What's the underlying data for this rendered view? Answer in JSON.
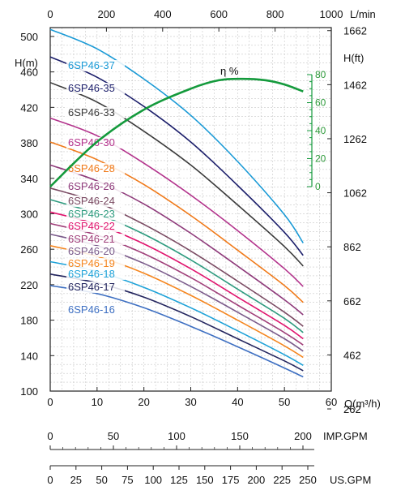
{
  "chart_data": {
    "type": "line",
    "title": "",
    "xlabel": "Q(m³/h)",
    "ylabel": "H(m)",
    "x_top_label": "L/min",
    "y_right_label": "H(ft)",
    "efficiency_label": "η %",
    "xlim": [
      0,
      60
    ],
    "ylim": [
      100,
      510
    ],
    "x_ticks": [
      "0",
      "10",
      "20",
      "30",
      "40",
      "50",
      "60"
    ],
    "x_top_ticks": [
      "0",
      "200",
      "400",
      "600",
      "800",
      "1000"
    ],
    "y_ticks": [
      "100",
      "140",
      "180",
      "220",
      "260",
      "300",
      "340",
      "380",
      "420",
      "460",
      "500"
    ],
    "y_right_ticks": [
      "262",
      "462",
      "662",
      "862",
      "1062",
      "1262",
      "1462",
      "1662"
    ],
    "efficiency_ticks": [
      "0",
      "20",
      "40",
      "60",
      "80"
    ],
    "grid": true,
    "series": [
      {
        "name": "6SP46-37",
        "color": "#1a9ad6",
        "x": [
          0,
          10,
          20,
          30,
          40,
          50,
          54
        ],
        "values": [
          508,
          486,
          452,
          411,
          359,
          299,
          267
        ]
      },
      {
        "name": "6SP46-35",
        "color": "#1c1f6b",
        "x": [
          0,
          10,
          20,
          30,
          40,
          50,
          54
        ],
        "values": [
          477,
          454,
          421,
          381,
          332,
          279,
          253
        ]
      },
      {
        "name": "6SP46-33",
        "color": "#3a3a3a",
        "x": [
          0,
          10,
          20,
          30,
          40,
          50,
          54
        ],
        "values": [
          448,
          426,
          393,
          355,
          310,
          263,
          241
        ]
      },
      {
        "name": "6SP46-30",
        "color": "#b3338c",
        "x": [
          0,
          10,
          20,
          30,
          40,
          50,
          54
        ],
        "values": [
          408,
          388,
          357,
          321,
          281,
          238,
          218
        ]
      },
      {
        "name": "6SP46-28",
        "color": "#f07a1a",
        "x": [
          0,
          10,
          20,
          30,
          40,
          50,
          54
        ],
        "values": [
          381,
          361,
          333,
          298,
          259,
          219,
          200
        ]
      },
      {
        "name": "6SP46-26",
        "color": "#8e3a7a",
        "x": [
          0,
          10,
          20,
          30,
          40,
          50,
          54
        ],
        "values": [
          355,
          337,
          311,
          278,
          241,
          203,
          186
        ]
      },
      {
        "name": "6SP46-24",
        "color": "#7a4a62",
        "x": [
          0,
          10,
          20,
          30,
          40,
          50,
          54
        ],
        "values": [
          329,
          313,
          288,
          258,
          224,
          189,
          173
        ]
      },
      {
        "name": "6SP46-23",
        "color": "#2e9b7f",
        "x": [
          0,
          10,
          20,
          30,
          40,
          50,
          54
        ],
        "values": [
          316,
          300,
          277,
          248,
          215,
          182,
          166
        ]
      },
      {
        "name": "6SP46-22",
        "color": "#e0156e",
        "x": [
          0,
          10,
          20,
          30,
          40,
          50,
          54
        ],
        "values": [
          302,
          288,
          266,
          238,
          206,
          174,
          159
        ]
      },
      {
        "name": "6SP46-21",
        "color": "#a0407a",
        "x": [
          0,
          10,
          20,
          30,
          40,
          50,
          54
        ],
        "values": [
          289,
          276,
          255,
          228,
          197,
          166,
          152
        ]
      },
      {
        "name": "6SP46-20",
        "color": "#7a5a8a",
        "x": [
          0,
          10,
          20,
          30,
          40,
          50,
          54
        ],
        "values": [
          277,
          264,
          244,
          218,
          189,
          159,
          145
        ]
      },
      {
        "name": "6SP46-19",
        "color": "#f5861f",
        "x": [
          0,
          10,
          20,
          30,
          40,
          50,
          54
        ],
        "values": [
          264,
          252,
          233,
          208,
          180,
          151,
          138
        ]
      },
      {
        "name": "6SP46-18",
        "color": "#1ea2d8",
        "x": [
          0,
          10,
          20,
          30,
          40,
          50,
          54
        ],
        "values": [
          246,
          235,
          217,
          194,
          168,
          141,
          129
        ]
      },
      {
        "name": "6SP46-17",
        "color": "#23255e",
        "x": [
          0,
          10,
          20,
          30,
          40,
          50,
          54
        ],
        "values": [
          232,
          222,
          206,
          184,
          159,
          134,
          123
        ]
      },
      {
        "name": "6SP46-16",
        "color": "#3d6fc2",
        "x": [
          0,
          10,
          20,
          30,
          40,
          50,
          54
        ],
        "values": [
          219,
          210,
          194,
          173,
          150,
          126,
          116
        ]
      }
    ],
    "efficiency": {
      "color": "#149a3c",
      "x": [
        0,
        10,
        20,
        30,
        36,
        41,
        46,
        50,
        54
      ],
      "values": [
        0,
        32,
        55,
        70,
        76,
        77,
        76,
        73,
        68
      ],
      "ylim": [
        0,
        80
      ]
    },
    "imp_gpm": {
      "label": "IMP.GPM",
      "ticks": [
        "0",
        "50",
        "100",
        "150",
        "200"
      ]
    },
    "us_gpm": {
      "label": "US.GPM",
      "ticks": [
        "0",
        "25",
        "50",
        "75",
        "100",
        "125",
        "150",
        "175",
        "200",
        "225",
        "250"
      ]
    }
  }
}
